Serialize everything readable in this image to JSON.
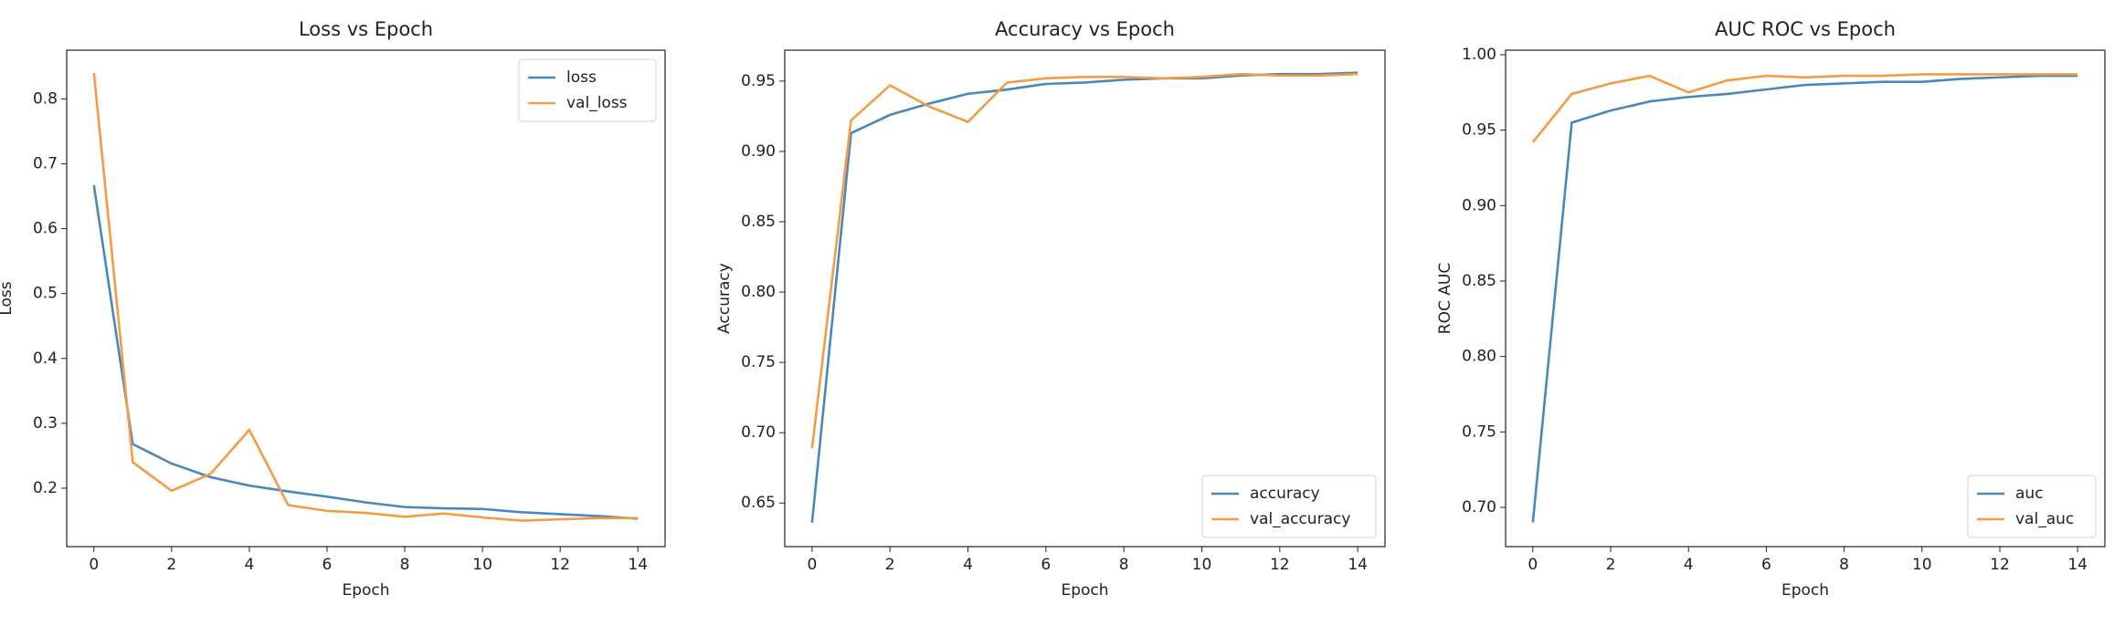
{
  "chart_data": [
    {
      "type": "line",
      "title": "Loss vs Epoch",
      "xlabel": "Epoch",
      "ylabel": "Loss",
      "x": [
        0,
        1,
        2,
        3,
        4,
        5,
        6,
        7,
        8,
        9,
        10,
        11,
        12,
        13,
        14
      ],
      "xlim": [
        -0.7,
        14.7
      ],
      "xticks": [
        0,
        2,
        4,
        6,
        8,
        10,
        12,
        14
      ],
      "ylim": [
        0.11,
        0.875
      ],
      "yticks": [
        0.2,
        0.3,
        0.4,
        0.5,
        0.6,
        0.7,
        0.8
      ],
      "legend": "upper right",
      "series": [
        {
          "name": "loss",
          "color": "#4a87bd",
          "values": [
            0.667,
            0.268,
            0.238,
            0.217,
            0.204,
            0.195,
            0.187,
            0.178,
            0.171,
            0.169,
            0.168,
            0.163,
            0.16,
            0.157,
            0.153
          ]
        },
        {
          "name": "val_loss",
          "color": "#f59b45",
          "values": [
            0.84,
            0.24,
            0.196,
            0.222,
            0.29,
            0.174,
            0.165,
            0.162,
            0.156,
            0.161,
            0.155,
            0.15,
            0.152,
            0.154,
            0.154
          ]
        }
      ]
    },
    {
      "type": "line",
      "title": "Accuracy vs Epoch",
      "xlabel": "Epoch",
      "ylabel": "Accuracy",
      "x": [
        0,
        1,
        2,
        3,
        4,
        5,
        6,
        7,
        8,
        9,
        10,
        11,
        12,
        13,
        14
      ],
      "xlim": [
        -0.7,
        14.7
      ],
      "xticks": [
        0,
        2,
        4,
        6,
        8,
        10,
        12,
        14
      ],
      "ylim": [
        0.619,
        0.972
      ],
      "yticks": [
        0.65,
        {
          "value": 0.7,
          "label": "0.70"
        },
        0.75,
        {
          "value": 0.8,
          "label": "0.80"
        },
        0.85,
        {
          "value": 0.9,
          "label": "0.90"
        },
        0.95
      ],
      "legend": "lower right",
      "series": [
        {
          "name": "accuracy",
          "color": "#4a87bd",
          "values": [
            0.636,
            0.913,
            0.926,
            0.934,
            0.941,
            0.944,
            0.948,
            0.949,
            0.951,
            0.952,
            0.952,
            0.954,
            0.955,
            0.955,
            0.956
          ]
        },
        {
          "name": "val_accuracy",
          "color": "#f59b45",
          "values": [
            0.689,
            0.922,
            0.947,
            0.932,
            0.921,
            0.949,
            0.952,
            0.953,
            0.953,
            0.952,
            0.953,
            0.955,
            0.954,
            0.954,
            0.955
          ]
        }
      ]
    },
    {
      "type": "line",
      "title": "AUC ROC vs Epoch",
      "xlabel": "Epoch",
      "ylabel": "ROC AUC",
      "x": [
        0,
        1,
        2,
        3,
        4,
        5,
        6,
        7,
        8,
        9,
        10,
        11,
        12,
        13,
        14
      ],
      "xlim": [
        -0.7,
        14.7
      ],
      "xticks": [
        0,
        2,
        4,
        6,
        8,
        10,
        12,
        14
      ],
      "ylim": [
        0.674,
        1.003
      ],
      "yticks": [
        {
          "value": 0.7,
          "label": "0.70"
        },
        0.75,
        {
          "value": 0.8,
          "label": "0.80"
        },
        0.85,
        {
          "value": 0.9,
          "label": "0.90"
        },
        0.95,
        {
          "value": 1,
          "label": "1.00"
        }
      ],
      "legend": "lower right",
      "series": [
        {
          "name": "auc",
          "color": "#4a87bd",
          "values": [
            0.69,
            0.955,
            0.963,
            0.969,
            0.972,
            0.974,
            0.977,
            0.98,
            0.981,
            0.982,
            0.982,
            0.984,
            0.985,
            0.986,
            0.986
          ]
        },
        {
          "name": "val_auc",
          "color": "#f59b45",
          "values": [
            0.942,
            0.974,
            0.981,
            0.986,
            0.975,
            0.983,
            0.986,
            0.985,
            0.986,
            0.986,
            0.987,
            0.987,
            0.987,
            0.987,
            0.987
          ]
        }
      ]
    }
  ]
}
